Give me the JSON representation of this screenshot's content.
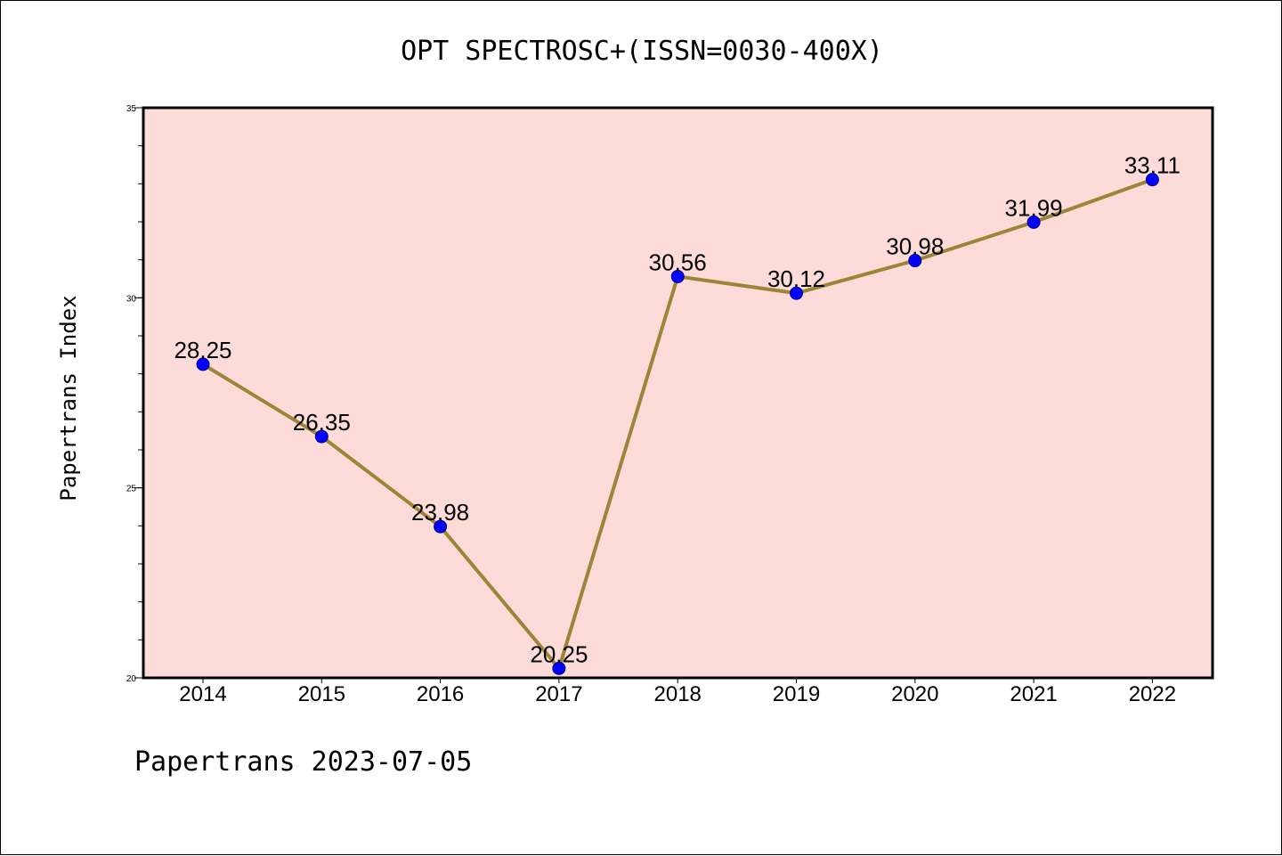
{
  "colors": {
    "plot_background": "#fddbd9",
    "line": "#9c8536",
    "marker": "#0000ff",
    "frame": "#000000"
  },
  "footer": "Papertrans 2023-07-05",
  "chart_data": {
    "type": "line",
    "title": "OPT SPECTROSC+(ISSN=0030-400X)",
    "xlabel": "",
    "ylabel": "Papertrans Index",
    "categories": [
      "2014",
      "2015",
      "2016",
      "2017",
      "2018",
      "2019",
      "2020",
      "2021",
      "2022"
    ],
    "series": [
      {
        "values": [
          28.25,
          26.35,
          23.98,
          20.25,
          30.56,
          30.12,
          30.98,
          31.99,
          33.11
        ],
        "labels": [
          "28.25",
          "26.35",
          "23.98",
          "20.25",
          "30.56",
          "30.12",
          "30.98",
          "31.99",
          "33.11"
        ]
      }
    ],
    "ylim": [
      20,
      35
    ],
    "yticks": [
      20,
      25,
      30,
      35
    ],
    "ytick_labels": [
      "20",
      "25",
      "30",
      "35"
    ],
    "grid": false,
    "legend": "none"
  }
}
